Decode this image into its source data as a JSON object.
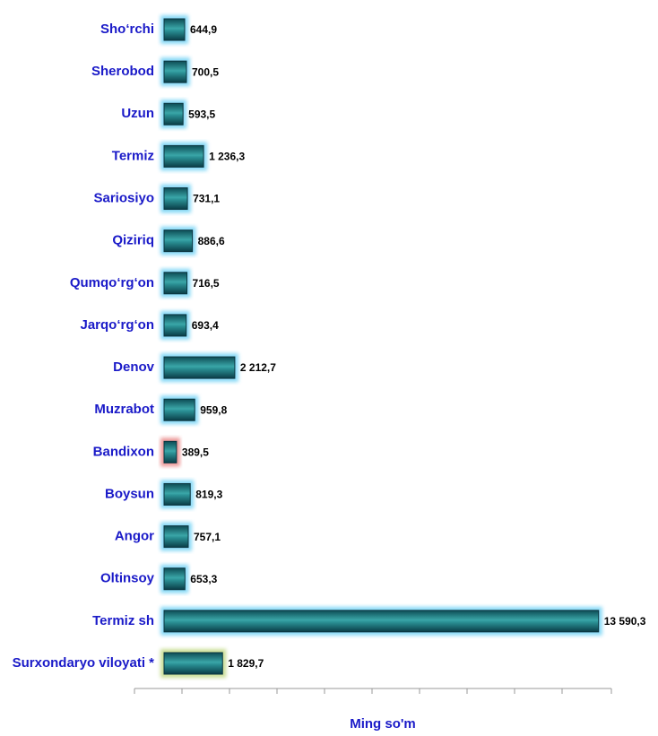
{
  "chart_data": {
    "type": "barh",
    "xlabel": "Ming so'm",
    "categories": [
      "Sho‘rchi",
      "Sherobod",
      "Uzun",
      "Termiz",
      "Sariosiyo",
      "Qiziriq",
      "Qumqo‘rg‘on",
      "Jarqo‘rg‘on",
      "Denov",
      "Muzrabot",
      "Bandixon",
      "Boysun",
      "Angor",
      "Oltinsoy",
      "Termiz sh",
      "Surxondaryo viloyati *"
    ],
    "values": [
      644.9,
      700.5,
      593.5,
      1236.3,
      731.1,
      886.6,
      716.5,
      693.4,
      2212.7,
      959.8,
      389.5,
      819.3,
      757.1,
      653.3,
      13590.3,
      1829.7
    ],
    "value_labels": [
      "644,9",
      "700,5",
      "593,5",
      "1 236,3",
      "731,1",
      "886,6",
      "716,5",
      "693,4",
      "2 212,7",
      "959,8",
      "389,5",
      "819,3",
      "757,1",
      "653,3",
      "13 590,3",
      "1 829,7"
    ],
    "color": "#1e7a80",
    "glow_colors": [
      "#6cd0f4",
      "#6cd0f4",
      "#6cd0f4",
      "#6cd0f4",
      "#6cd0f4",
      "#6cd0f4",
      "#6cd0f4",
      "#6cd0f4",
      "#6cd0f4",
      "#6cd0f4",
      "#e88080",
      "#6cd0f4",
      "#6cd0f4",
      "#6cd0f4",
      "#6cd0f4",
      "#bcd57a"
    ],
    "xlim": [
      0,
      15000
    ]
  }
}
